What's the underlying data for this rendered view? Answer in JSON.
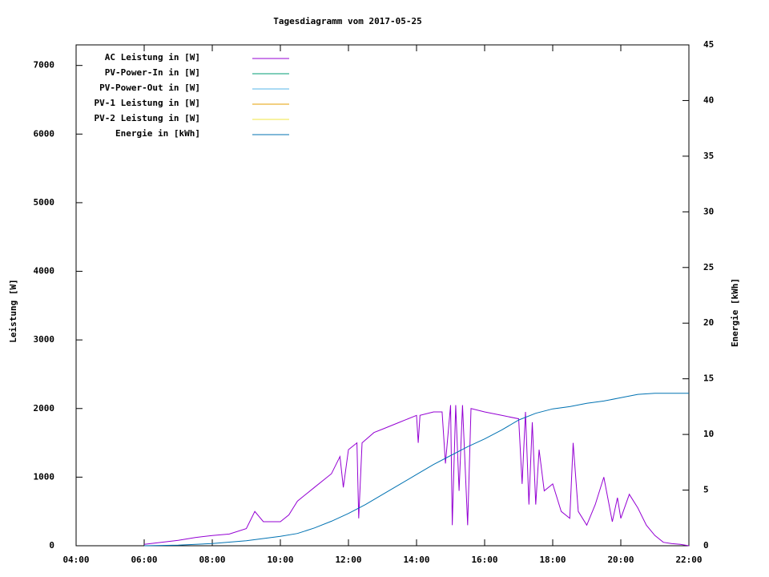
{
  "chart_data": {
    "type": "line",
    "title": "Tagesdiagramm vom 2017-05-25",
    "ylabel": "Leistung [W]",
    "y2label": "Energie [kWh]",
    "xlim": [
      4,
      22
    ],
    "xticks": [
      {
        "value": 4,
        "label": "04:00"
      },
      {
        "value": 6,
        "label": "06:00"
      },
      {
        "value": 8,
        "label": "08:00"
      },
      {
        "value": 10,
        "label": "10:00"
      },
      {
        "value": 12,
        "label": "12:00"
      },
      {
        "value": 14,
        "label": "14:00"
      },
      {
        "value": 16,
        "label": "16:00"
      },
      {
        "value": 18,
        "label": "18:00"
      },
      {
        "value": 20,
        "label": "20:00"
      },
      {
        "value": 22,
        "label": "22:00"
      }
    ],
    "ylim": [
      0,
      7300
    ],
    "yticks": [
      0,
      1000,
      2000,
      3000,
      4000,
      5000,
      6000,
      7000
    ],
    "y2lim": [
      0,
      45
    ],
    "y2ticks": [
      0,
      5,
      10,
      15,
      20,
      25,
      30,
      35,
      40,
      45
    ],
    "legend": "top-left",
    "series": [
      {
        "name": "AC Leistung in [W]",
        "color": "#9400d3",
        "x": [
          6.0,
          6.5,
          7.0,
          7.5,
          8.0,
          8.5,
          9.0,
          9.25,
          9.5,
          10.0,
          10.25,
          10.5,
          11.0,
          11.5,
          11.75,
          11.85,
          12.0,
          12.25,
          12.3,
          12.4,
          12.75,
          13.0,
          13.5,
          14.0,
          14.05,
          14.1,
          14.5,
          14.75,
          14.85,
          15.0,
          15.05,
          15.15,
          15.25,
          15.35,
          15.5,
          15.6,
          16.0,
          16.5,
          17.0,
          17.1,
          17.2,
          17.3,
          17.4,
          17.5,
          17.6,
          17.75,
          18.0,
          18.25,
          18.5,
          18.6,
          18.75,
          19.0,
          19.25,
          19.5,
          19.75,
          19.9,
          20.0,
          20.25,
          20.5,
          20.75,
          21.0,
          21.25,
          21.5,
          21.75,
          22.0
        ],
        "values": [
          20,
          50,
          80,
          120,
          150,
          170,
          250,
          500,
          350,
          350,
          450,
          650,
          850,
          1050,
          1300,
          850,
          1400,
          1500,
          400,
          1500,
          1650,
          1700,
          1800,
          1900,
          1500,
          1900,
          1950,
          1950,
          1200,
          2050,
          300,
          2050,
          800,
          2050,
          300,
          2000,
          1950,
          1900,
          1850,
          900,
          1950,
          600,
          1800,
          600,
          1400,
          800,
          900,
          500,
          400,
          1500,
          500,
          300,
          600,
          1000,
          350,
          700,
          400,
          750,
          550,
          300,
          150,
          50,
          30,
          20,
          0
        ]
      },
      {
        "name": "PV-Power-In in [W]",
        "color": "#009e73"
      },
      {
        "name": "PV-Power-Out in [W]",
        "color": "#56b4e9"
      },
      {
        "name": "PV-1 Leistung in [W]",
        "color": "#e69f00"
      },
      {
        "name": "PV-2 Leistung in [W]",
        "color": "#f0e442"
      },
      {
        "name": "Energie in [kWh]",
        "color": "#0072b2",
        "axis": "y2",
        "x": [
          6,
          7,
          8,
          9,
          10,
          10.5,
          11,
          11.5,
          12,
          12.5,
          13,
          13.5,
          14,
          14.5,
          15,
          15.5,
          16,
          16.5,
          17,
          17.5,
          18,
          18.5,
          19,
          19.5,
          20,
          20.5,
          21,
          22
        ],
        "values": [
          0,
          0.05,
          0.2,
          0.45,
          0.85,
          1.1,
          1.6,
          2.2,
          2.9,
          3.7,
          4.6,
          5.5,
          6.4,
          7.3,
          8.1,
          8.9,
          9.6,
          10.4,
          11.3,
          11.9,
          12.3,
          12.5,
          12.8,
          13.0,
          13.3,
          13.6,
          13.7,
          13.7
        ]
      }
    ]
  }
}
